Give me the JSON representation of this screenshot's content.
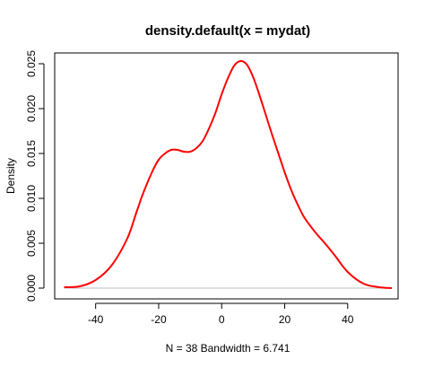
{
  "chart_data": {
    "type": "line",
    "title": "density.default(x = mydat)",
    "xlabel": "N = 38   Bandwidth = 6.741",
    "ylabel": "Density",
    "xlim": [
      -53,
      56
    ],
    "ylim": [
      -0.0012,
      0.0262
    ],
    "x_ticks": [
      -40,
      -20,
      0,
      20,
      40
    ],
    "y_ticks": [
      0.0,
      0.005,
      0.01,
      0.015,
      0.02,
      0.025
    ],
    "y_tick_labels": [
      "0.000",
      "0.005",
      "0.010",
      "0.015",
      "0.020",
      "0.025"
    ],
    "x_tick_labels": [
      "-40",
      "-20",
      "0",
      "20",
      "40"
    ],
    "line_color": "#ff0000",
    "baseline_color": "#bebebe",
    "series": [
      {
        "x": [
          -50.0,
          -45.0,
          -40.0,
          -35.0,
          -30.0,
          -27.0,
          -25.0,
          -22.0,
          -20.0,
          -18.0,
          -16.0,
          -14.0,
          -12.0,
          -10.0,
          -8.0,
          -6.0,
          -4.0,
          -2.0,
          0.0,
          2.0,
          4.0,
          6.0,
          8.0,
          10.0,
          12.0,
          14.0,
          16.0,
          18.0,
          20.0,
          22.0,
          24.0,
          26.0,
          28.0,
          30.0,
          33.0,
          36.0,
          40.0,
          45.0,
          50.0,
          54.0
        ],
        "y": [
          0.0001,
          0.0002,
          0.0009,
          0.0025,
          0.0055,
          0.0085,
          0.0105,
          0.013,
          0.0143,
          0.015,
          0.0154,
          0.0154,
          0.0152,
          0.0152,
          0.0156,
          0.0164,
          0.0178,
          0.0195,
          0.0216,
          0.0234,
          0.0248,
          0.0253,
          0.0249,
          0.0235,
          0.0215,
          0.0193,
          0.0171,
          0.015,
          0.0129,
          0.011,
          0.0094,
          0.008,
          0.007,
          0.0061,
          0.0049,
          0.0036,
          0.0018,
          0.0005,
          0.0001,
          0.0
        ]
      }
    ]
  }
}
